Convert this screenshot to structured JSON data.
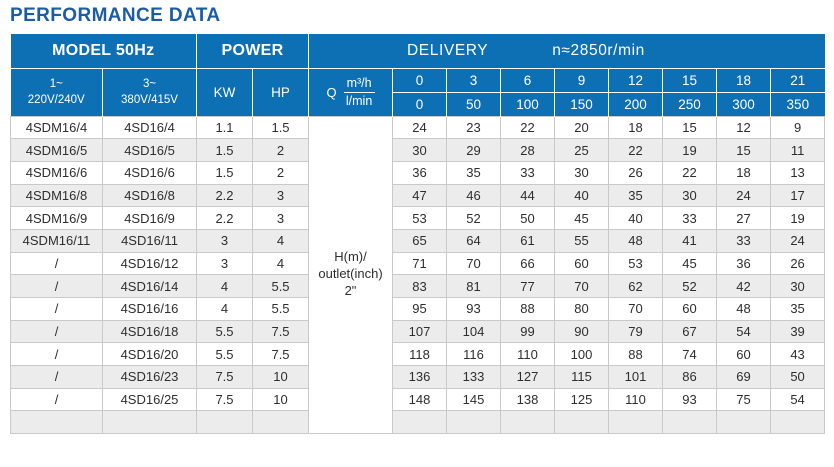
{
  "title": "PERFORMANCE DATA",
  "colors": {
    "header_blue": "#0d6fb4",
    "title_blue": "#1a5ca6",
    "alt_row_gray": "#ececec",
    "border_gray": "#c9c9c9"
  },
  "header": {
    "model": "MODEL 50Hz",
    "power": "POWER",
    "delivery": "DELIVERY",
    "speed": "n≈2850r/min",
    "phase1": {
      "line1": "1~",
      "line2": "220V/240V"
    },
    "phase3": {
      "line1": "3~",
      "line2": "380V/415V"
    },
    "kw": "KW",
    "hp": "HP",
    "q": {
      "label": "Q",
      "num": "m³/h",
      "den": "l/min"
    },
    "delivery_m3h": [
      "0",
      "3",
      "6",
      "9",
      "12",
      "15",
      "18",
      "21"
    ],
    "delivery_lmin": [
      "0",
      "50",
      "100",
      "150",
      "200",
      "250",
      "300",
      "350"
    ]
  },
  "head_cell": {
    "line1": "H(m)/",
    "line2": "outlet(inch)",
    "line3": "2\""
  },
  "rows": [
    {
      "model_1ph": "4SDM16/4",
      "model_3ph": "4SD16/4",
      "kw": "1.1",
      "hp": "1.5",
      "heads": [
        "24",
        "23",
        "22",
        "20",
        "18",
        "15",
        "12",
        "9"
      ]
    },
    {
      "model_1ph": "4SDM16/5",
      "model_3ph": "4SD16/5",
      "kw": "1.5",
      "hp": "2",
      "heads": [
        "30",
        "29",
        "28",
        "25",
        "22",
        "19",
        "15",
        "11"
      ]
    },
    {
      "model_1ph": "4SDM16/6",
      "model_3ph": "4SD16/6",
      "kw": "1.5",
      "hp": "2",
      "heads": [
        "36",
        "35",
        "33",
        "30",
        "26",
        "22",
        "18",
        "13"
      ]
    },
    {
      "model_1ph": "4SDM16/8",
      "model_3ph": "4SD16/8",
      "kw": "2.2",
      "hp": "3",
      "heads": [
        "47",
        "46",
        "44",
        "40",
        "35",
        "30",
        "24",
        "17"
      ]
    },
    {
      "model_1ph": "4SDM16/9",
      "model_3ph": "4SD16/9",
      "kw": "2.2",
      "hp": "3",
      "heads": [
        "53",
        "52",
        "50",
        "45",
        "40",
        "33",
        "27",
        "19"
      ]
    },
    {
      "model_1ph": "4SDM16/11",
      "model_3ph": "4SD16/11",
      "kw": "3",
      "hp": "4",
      "heads": [
        "65",
        "64",
        "61",
        "55",
        "48",
        "41",
        "33",
        "24"
      ]
    },
    {
      "model_1ph": "/",
      "model_3ph": "4SD16/12",
      "kw": "3",
      "hp": "4",
      "heads": [
        "71",
        "70",
        "66",
        "60",
        "53",
        "45",
        "36",
        "26"
      ]
    },
    {
      "model_1ph": "/",
      "model_3ph": "4SD16/14",
      "kw": "4",
      "hp": "5.5",
      "heads": [
        "83",
        "81",
        "77",
        "70",
        "62",
        "52",
        "42",
        "30"
      ]
    },
    {
      "model_1ph": "/",
      "model_3ph": "4SD16/16",
      "kw": "4",
      "hp": "5.5",
      "heads": [
        "95",
        "93",
        "88",
        "80",
        "70",
        "60",
        "48",
        "35"
      ]
    },
    {
      "model_1ph": "/",
      "model_3ph": "4SD16/18",
      "kw": "5.5",
      "hp": "7.5",
      "heads": [
        "107",
        "104",
        "99",
        "90",
        "79",
        "67",
        "54",
        "39"
      ]
    },
    {
      "model_1ph": "/",
      "model_3ph": "4SD16/20",
      "kw": "5.5",
      "hp": "7.5",
      "heads": [
        "118",
        "116",
        "110",
        "100",
        "88",
        "74",
        "60",
        "43"
      ]
    },
    {
      "model_1ph": "/",
      "model_3ph": "4SD16/23",
      "kw": "7.5",
      "hp": "10",
      "heads": [
        "136",
        "133",
        "127",
        "115",
        "101",
        "86",
        "69",
        "50"
      ]
    },
    {
      "model_1ph": "/",
      "model_3ph": "4SD16/25",
      "kw": "7.5",
      "hp": "10",
      "heads": [
        "148",
        "145",
        "138",
        "125",
        "110",
        "93",
        "75",
        "54"
      ]
    }
  ]
}
